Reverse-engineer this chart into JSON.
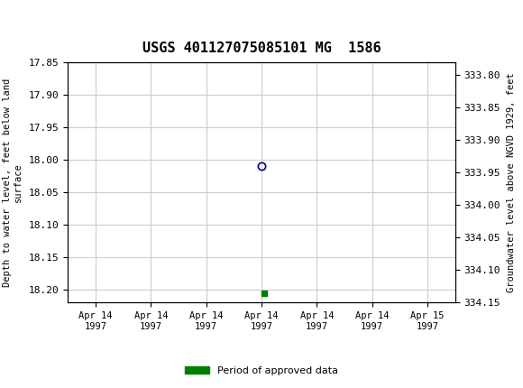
{
  "title": "USGS 401127075085101 MG  1586",
  "header_color": "#006633",
  "ylabel_left": "Depth to water level, feet below land\nsurface",
  "ylabel_right": "Groundwater level above NGVD 1929, feet",
  "ylim_left": [
    17.85,
    18.22
  ],
  "ylim_right": [
    333.78,
    334.15
  ],
  "yticks_left": [
    17.85,
    17.9,
    17.95,
    18.0,
    18.05,
    18.1,
    18.15,
    18.2
  ],
  "yticks_right": [
    334.15,
    334.1,
    334.05,
    334.0,
    333.95,
    333.9,
    333.85,
    333.8
  ],
  "xlim": [
    -0.5,
    6.5
  ],
  "xtick_labels": [
    "Apr 14\n1997",
    "Apr 14\n1997",
    "Apr 14\n1997",
    "Apr 14\n1997",
    "Apr 14\n1997",
    "Apr 14\n1997",
    "Apr 15\n1997"
  ],
  "xtick_positions": [
    0,
    1,
    2,
    3,
    4,
    5,
    6
  ],
  "data_point_x": 3.0,
  "data_point_y": 18.01,
  "data_point_color": "#000080",
  "approved_point_x": 3.05,
  "approved_point_y": 18.205,
  "approved_color": "#008000",
  "grid_color": "#cccccc",
  "bg_color": "#ffffff",
  "legend_label": "Period of approved data",
  "legend_color": "#008000",
  "font_family": "monospace"
}
